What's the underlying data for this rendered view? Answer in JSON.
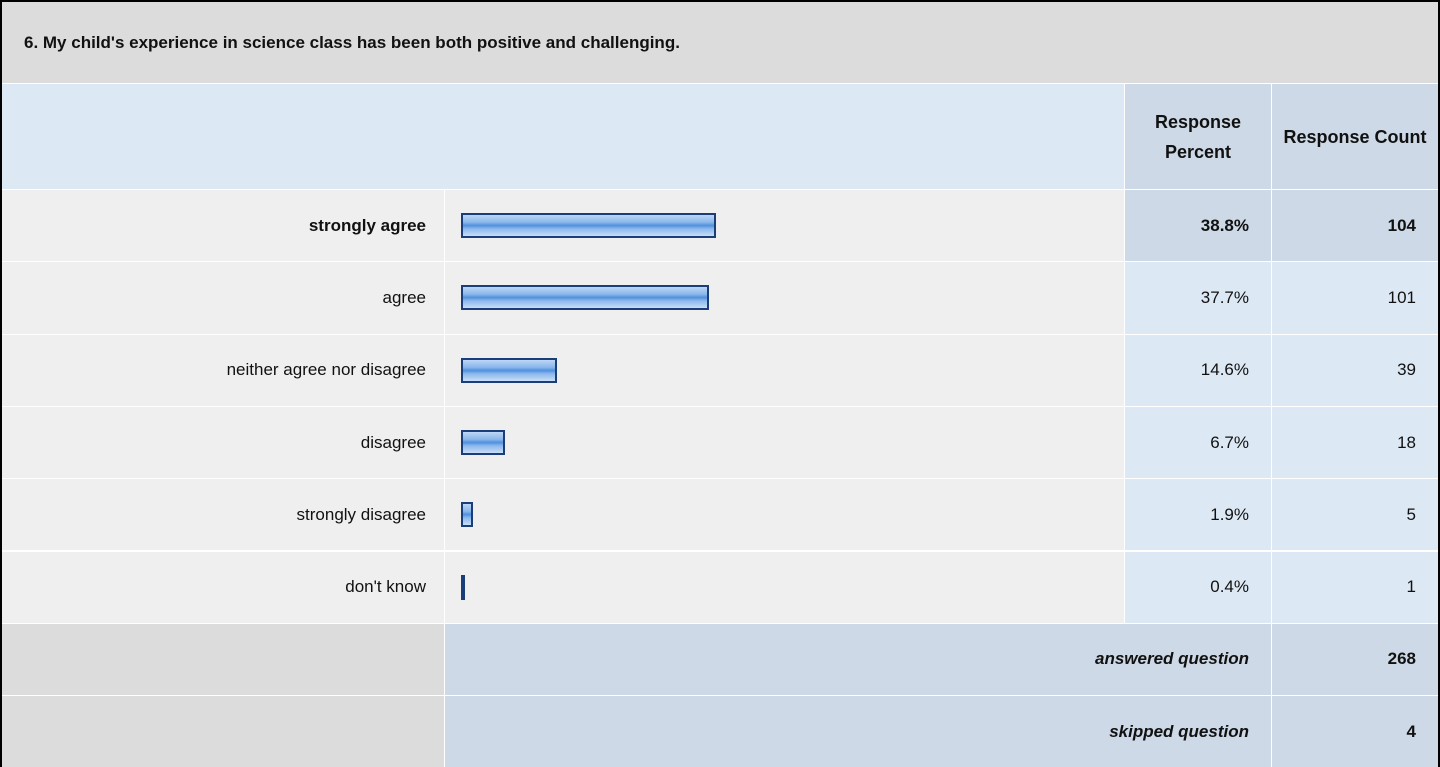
{
  "question": {
    "title": "6. My child's experience in science class has been both positive and challenging.",
    "headers": [
      "Response Percent",
      "Response Count"
    ],
    "rows": [
      {
        "label": "strongly agree",
        "percent": 38.8,
        "percent_label": "38.8%",
        "count": 104
      },
      {
        "label": "agree",
        "percent": 37.7,
        "percent_label": "37.7%",
        "count": 101
      },
      {
        "label": "neither agree nor disagree",
        "percent": 14.6,
        "percent_label": "14.6%",
        "count": 39
      },
      {
        "label": "disagree",
        "percent": 6.7,
        "percent_label": "6.7%",
        "count": 18
      },
      {
        "label": "strongly disagree",
        "percent": 1.9,
        "percent_label": "1.9%",
        "count": 5
      },
      {
        "label": "don't know",
        "percent": 0.4,
        "percent_label": "0.4%",
        "count": 1
      }
    ],
    "summary": [
      {
        "label": "answered question",
        "count": 268
      },
      {
        "label": "skipped question",
        "count": 4
      }
    ]
  }
}
